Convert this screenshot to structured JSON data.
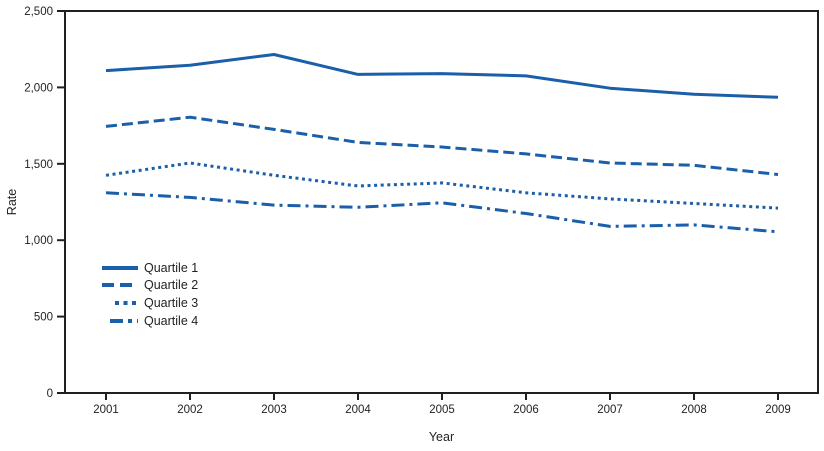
{
  "figure": {
    "line_color": "#1B5EA9",
    "axis_color": "#231F20",
    "text_color": "#231F20",
    "background": "#ffffff"
  },
  "legend": {
    "items": [
      {
        "label": "Quartile 1",
        "style": "solid"
      },
      {
        "label": "Quartile 2",
        "style": "dashed"
      },
      {
        "label": "Quartile 3",
        "style": "dotted"
      },
      {
        "label": "Quartile 4",
        "style": "dashdot"
      }
    ]
  },
  "chart_data": {
    "type": "line",
    "title": "",
    "xlabel": "Year",
    "ylabel": "Rate",
    "x": [
      2001,
      2002,
      2003,
      2004,
      2005,
      2006,
      2007,
      2008,
      2009
    ],
    "xtick_labels": [
      "2001",
      "2002",
      "2003",
      "2004",
      "2005",
      "2006",
      "2007",
      "2008",
      "2009"
    ],
    "ylim": [
      0,
      2500
    ],
    "yticks": [
      0,
      500,
      1000,
      1500,
      2000,
      2500
    ],
    "ytick_labels": [
      "0",
      "500",
      "1,000",
      "1,500",
      "2,000",
      "2,500"
    ],
    "grid": false,
    "legend_position": "inside-lower-left",
    "series": [
      {
        "name": "Quartile 1",
        "style": "solid",
        "values": [
          2110,
          2145,
          2215,
          2085,
          2090,
          2075,
          1995,
          1955,
          1935
        ]
      },
      {
        "name": "Quartile 2",
        "style": "dashed",
        "values": [
          1745,
          1805,
          1725,
          1640,
          1610,
          1565,
          1505,
          1490,
          1430
        ]
      },
      {
        "name": "Quartile 3",
        "style": "dotted",
        "values": [
          1425,
          1505,
          1425,
          1355,
          1375,
          1310,
          1270,
          1240,
          1210
        ]
      },
      {
        "name": "Quartile 4",
        "style": "dashdot",
        "values": [
          1310,
          1280,
          1230,
          1215,
          1245,
          1175,
          1090,
          1100,
          1055
        ]
      }
    ]
  }
}
